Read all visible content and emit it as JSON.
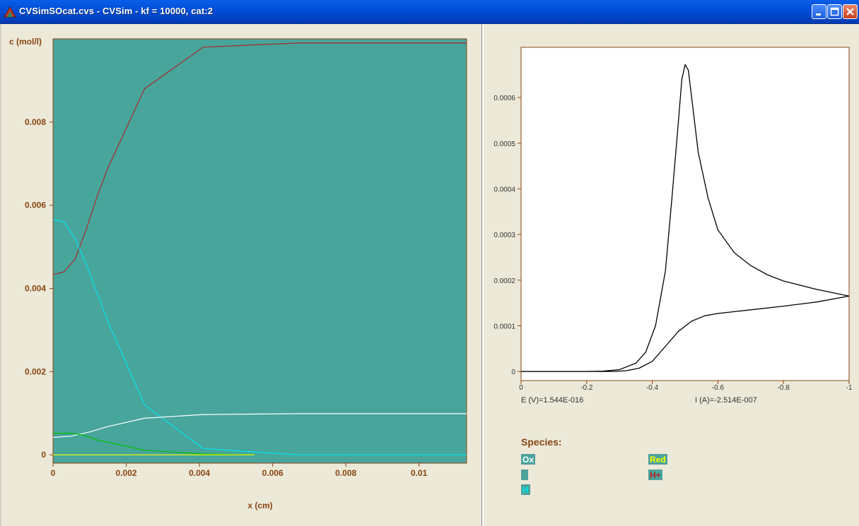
{
  "window": {
    "title": "CVSimSOcat.cvs - CVSim - kf = 10000, cat:2"
  },
  "controls": [
    "minimize-button",
    "maximize-button",
    "close-button"
  ],
  "left_chart": {
    "ylabel": "c (mol/l)",
    "xlabel": "x (cm)",
    "plot_bg": "#48a59c",
    "frame_color": "#8b4513",
    "yticks": [
      "0",
      "0.002",
      "0.004",
      "0.006",
      "0.008"
    ],
    "xticks": [
      "0",
      "0.002",
      "0.004",
      "0.006",
      "0.008",
      "0.01"
    ]
  },
  "right_chart": {
    "yticks": [
      "0",
      "0.0001",
      "0.0002",
      "0.0003",
      "0.0004",
      "0.0005",
      "0.0006"
    ],
    "xticks": [
      "0",
      "-0.2",
      "-0.4",
      "-0.6",
      "-0.8",
      "-1"
    ],
    "readout_e": "E (V)=1.544E-016",
    "readout_i": "I (A)=-2.514E-007"
  },
  "species": {
    "title": "Species:",
    "items": [
      {
        "label": "Ox",
        "text_color": "#ffffff"
      },
      {
        "label": "Red",
        "text_color": "#ffff00"
      },
      {
        "label": "",
        "text_color": "#00c000"
      },
      {
        "label": "H+",
        "text_color": "#b22222"
      },
      {
        "label": "H",
        "text_color": "#00e5ee"
      }
    ]
  },
  "chart_data": [
    {
      "type": "line",
      "xlabel": "x (cm)",
      "ylabel": "c (mol/l)",
      "xlim": [
        0,
        0.0113
      ],
      "ylim": [
        -0.0002,
        0.01
      ],
      "series": [
        {
          "name": "H+",
          "color": "#a52a2a",
          "x": [
            0,
            0.0003,
            0.0006,
            0.0009,
            0.0012,
            0.0015,
            0.0025,
            0.0041,
            0.0067,
            0.0113
          ],
          "y": [
            0.00433,
            0.0044,
            0.0047,
            0.0054,
            0.0062,
            0.0069,
            0.0088,
            0.0098,
            0.0099,
            0.0099
          ]
        },
        {
          "name": "H",
          "color": "#00e5ee",
          "x": [
            0,
            0.0003,
            0.0006,
            0.0009,
            0.0012,
            0.0015,
            0.0025,
            0.0041,
            0.0067,
            0.0113
          ],
          "y": [
            0.00566,
            0.0056,
            0.0052,
            0.0046,
            0.0039,
            0.0032,
            0.0012,
            0.00015,
            0.0,
            0.0
          ]
        },
        {
          "name": "Ox",
          "color": "#ffffff",
          "x": [
            0,
            0.0005,
            0.001,
            0.0015,
            0.0025,
            0.0041,
            0.0067,
            0.0113
          ],
          "y": [
            0.00042,
            0.00045,
            0.00055,
            0.00068,
            0.00088,
            0.00097,
            0.00099,
            0.00099
          ]
        },
        {
          "name": "",
          "color": "#00c000",
          "x": [
            0,
            0.0005,
            0.0008,
            0.0012,
            0.0025,
            0.0041,
            0.0055
          ],
          "y": [
            0.00052,
            0.00052,
            0.00048,
            0.00036,
            0.00011,
            2e-05,
            0.0
          ]
        },
        {
          "name": "Red",
          "color": "#ffff00",
          "x": [
            0,
            0.0055
          ],
          "y": [
            0.0,
            0.0
          ]
        }
      ]
    },
    {
      "type": "line",
      "xlim": [
        0,
        -1
      ],
      "ylim": [
        -2e-05,
        0.00071
      ],
      "series": [
        {
          "name": "",
          "color": "#000000",
          "x": [
            0,
            -0.2,
            -0.25,
            -0.3,
            -0.35,
            -0.38,
            -0.41,
            -0.44,
            -0.46,
            -0.48,
            -0.49,
            -0.5,
            -0.51,
            -0.52,
            -0.54,
            -0.57,
            -0.6,
            -0.65,
            -0.7,
            -0.75,
            -0.8,
            -0.9,
            -1.0
          ],
          "y": [
            0,
            0,
            5e-07,
            4e-06,
            1.8e-05,
            4.2e-05,
            0.0001,
            0.00022,
            0.00038,
            0.00055,
            0.00064,
            0.000672,
            0.00066,
            0.0006,
            0.00048,
            0.00038,
            0.00031,
            0.00026,
            0.000232,
            0.000212,
            0.000198,
            0.00018,
            0.000165
          ]
        },
        {
          "name": "",
          "color": "#000000",
          "x": [
            -1.0,
            -0.9,
            -0.8,
            -0.7,
            -0.65,
            -0.6,
            -0.56,
            -0.52,
            -0.48,
            -0.44,
            -0.4,
            -0.36,
            -0.32,
            -0.28,
            -0.2,
            0
          ],
          "y": [
            0.000165,
            0.000152,
            0.000143,
            0.000135,
            0.000131,
            0.000127,
            0.000122,
            0.00011,
            8.8e-05,
            5.5e-05,
            2.2e-05,
            7e-06,
            1.5e-06,
            0,
            0,
            0
          ]
        }
      ]
    }
  ]
}
